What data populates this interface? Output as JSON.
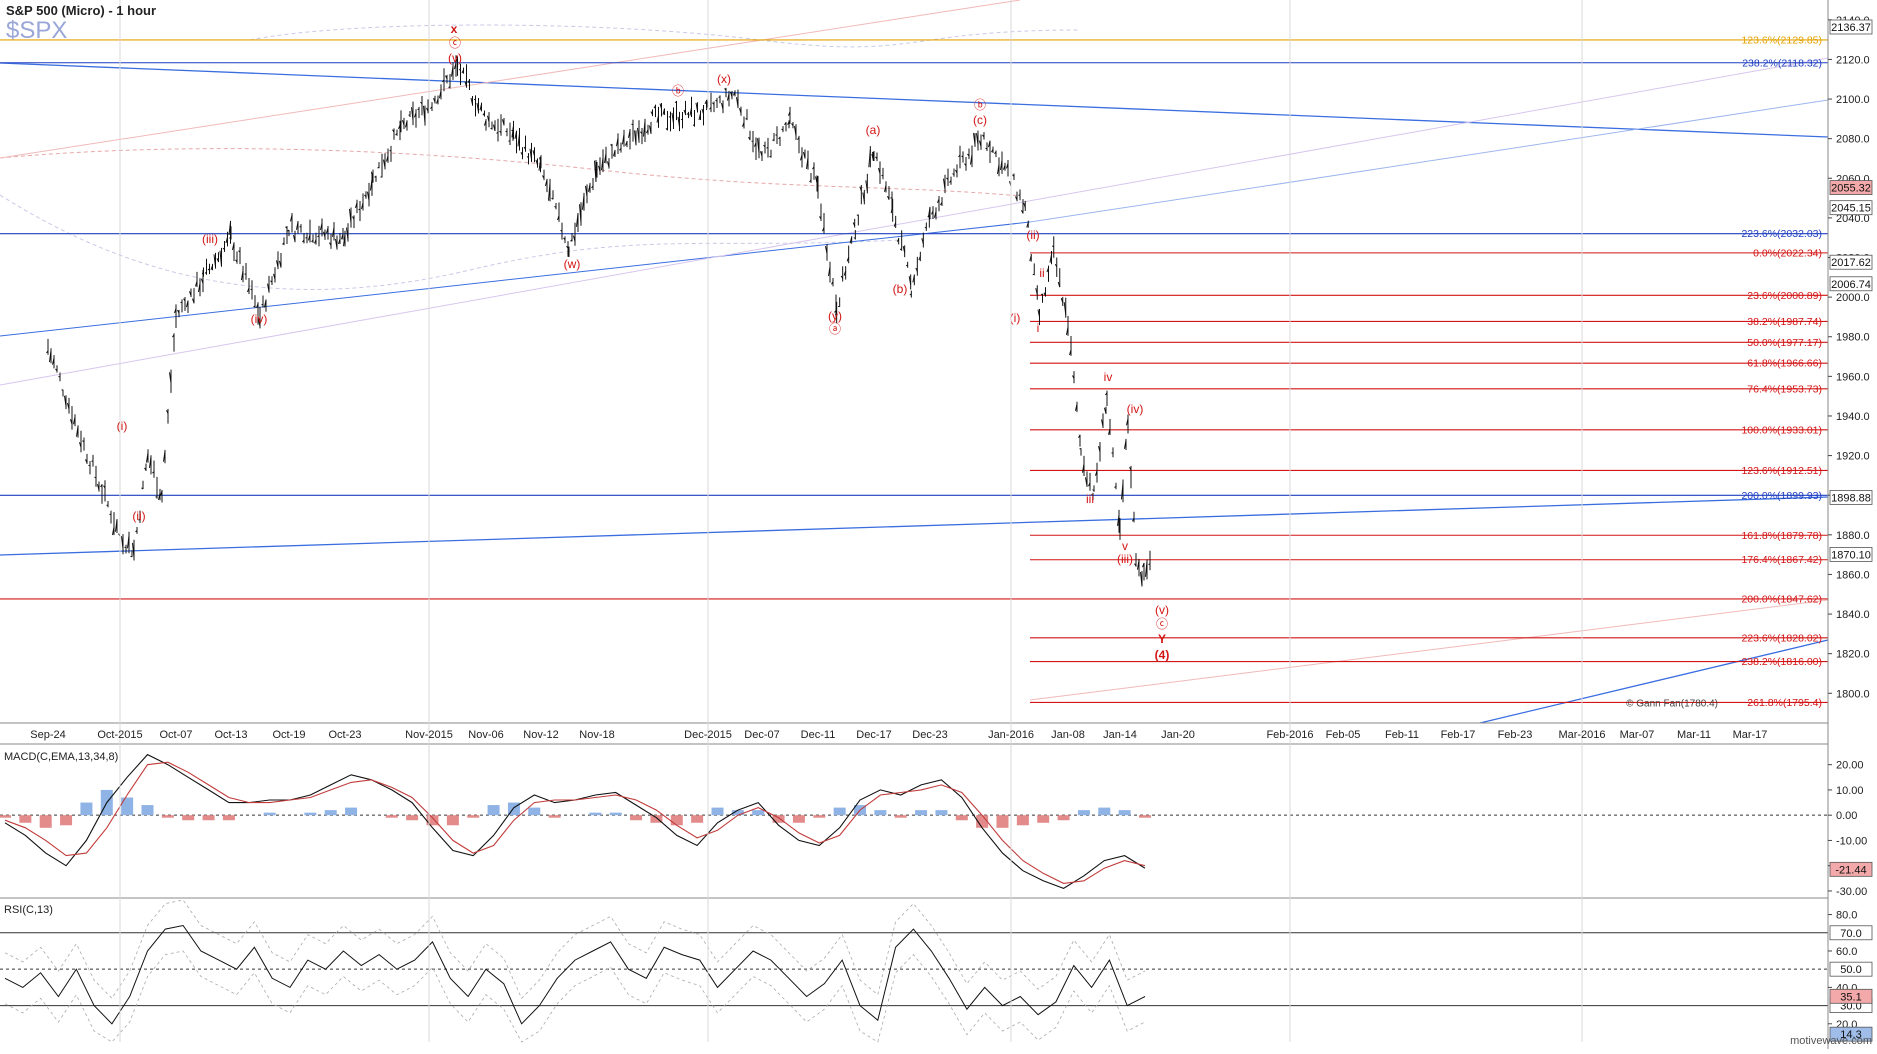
{
  "header": {
    "title": "S&P 500 (Micro) - 1 hour",
    "ticker": "$SPX"
  },
  "colors": {
    "accent_red": "#d31414",
    "fib_blue": "#1f3fc0",
    "fib_orange": "#e3a200",
    "trend_blue": "#3a6ee0",
    "bar": "#111111"
  },
  "chart_data": [
    {
      "type": "ohlc",
      "name": "price",
      "ylim": [
        1785,
        2150
      ],
      "grid": false,
      "y_ticks": [
        1800,
        1820,
        1840,
        1860,
        1880,
        1900,
        1920,
        1940,
        1960,
        1980,
        2000,
        2020,
        2040,
        2060,
        2080,
        2100,
        2120,
        2140
      ],
      "y_tick_labels": [
        "1800.0",
        "1820.0",
        "1840.0",
        "1860.0",
        "1880.0",
        "1900.0",
        "1920.0",
        "1940.0",
        "1960.0",
        "1980.0",
        "2000.0",
        "2020.0",
        "2040.0",
        "2060.0",
        "2080.0",
        "2100.0",
        "2120.0",
        "2140.0"
      ],
      "x_tick_labels": [
        "Sep-24",
        "Oct-2015",
        "Oct-07",
        "Oct-13",
        "Oct-19",
        "Oct-23",
        "Nov-2015",
        "Nov-06",
        "Nov-12",
        "Nov-18",
        "Dec-2015",
        "Dec-07",
        "Dec-11",
        "Dec-17",
        "Dec-23",
        "Jan-2016",
        "Jan-08",
        "Jan-14",
        "Jan-20",
        "Feb-2016",
        "Feb-05",
        "Feb-11",
        "Feb-17",
        "Feb-23",
        "Mar-2016",
        "Mar-07",
        "Mar-11",
        "Mar-17"
      ],
      "price_path": [
        [
          "Sep-24",
          1975
        ],
        [
          "Sep-24",
          1925
        ],
        [
          "Oct-2015",
          1880
        ],
        [
          "Oct-2015",
          1872
        ],
        [
          "Oct-2015",
          1920
        ],
        [
          "Oct-2015",
          1900
        ],
        [
          "Oct-07",
          1990
        ],
        [
          "Oct-07",
          2010
        ],
        [
          "Oct-13",
          2030
        ],
        [
          "Oct-13",
          1990
        ],
        [
          "Oct-19",
          2035
        ],
        [
          "Oct-23",
          2030
        ],
        [
          "Oct-23",
          2060
        ],
        [
          "Oct-23",
          2085
        ],
        [
          "Nov-2015",
          2097
        ],
        [
          "Nov-2015",
          2116
        ],
        [
          "Nov-06",
          2090
        ],
        [
          "Nov-06",
          2082
        ],
        [
          "Nov-12",
          2065
        ],
        [
          "Nov-12",
          2025
        ],
        [
          "Nov-18",
          2065
        ],
        [
          "Nov-18",
          2090
        ],
        [
          "Dec-2015",
          2094
        ],
        [
          "Dec-2015",
          2103
        ],
        [
          "Dec-07",
          2070
        ],
        [
          "Dec-07",
          2088
        ],
        [
          "Dec-11",
          2055
        ],
        [
          "Dec-11",
          1995
        ],
        [
          "Dec-11",
          2035
        ],
        [
          "Dec-17",
          2075
        ],
        [
          "Dec-17",
          2045
        ],
        [
          "Dec-17",
          2005
        ],
        [
          "Dec-23",
          2040
        ],
        [
          "Dec-23",
          2065
        ],
        [
          "Dec-23",
          2081
        ],
        [
          "Jan-2016",
          2060
        ],
        [
          "Jan-2016",
          2045
        ],
        [
          "Jan-2016",
          1990
        ],
        [
          "Jan-2016",
          2022
        ],
        [
          "Jan-08",
          1988
        ],
        [
          "Jan-08",
          1922
        ],
        [
          "Jan-08",
          1900
        ],
        [
          "Jan-08",
          1950
        ],
        [
          "Jan-14",
          1880
        ],
        [
          "Jan-14",
          1937
        ],
        [
          "Jan-14",
          1870
        ],
        [
          "Jan-14",
          1858
        ],
        [
          "Jan-14",
          1870
        ]
      ],
      "price_levels": [
        {
          "label": "2136.37"
        },
        {
          "label": "2055.32"
        },
        {
          "label": "2045.15"
        },
        {
          "label": "2017.62"
        },
        {
          "label": "2006.74"
        },
        {
          "label": "1898.88"
        },
        {
          "label": "1870.10"
        }
      ],
      "fib_levels": [
        {
          "text": "123.6%(2129.85)",
          "value": 2129.85,
          "color": "#e3a200"
        },
        {
          "text": "238.2%(2118.32)",
          "value": 2118.32,
          "color": "#1f3fc0"
        },
        {
          "text": "223.6%(2032.03)",
          "value": 2032.03,
          "color": "#1f3fc0"
        },
        {
          "text": "0.0%(2022.34)",
          "value": 2022.34,
          "color": "#d31414"
        },
        {
          "text": "23.6%(2000.89)",
          "value": 2000.89,
          "color": "#d31414"
        },
        {
          "text": "38.2%(1987.74)",
          "value": 1987.74,
          "color": "#d31414"
        },
        {
          "text": "50.0%(1977.17)",
          "value": 1977.17,
          "color": "#d31414"
        },
        {
          "text": "61.8%(1966.66)",
          "value": 1966.66,
          "color": "#d31414"
        },
        {
          "text": "76.4%(1953.73)",
          "value": 1953.73,
          "color": "#d31414"
        },
        {
          "text": "100.0%(1933.01)",
          "value": 1933.01,
          "color": "#d31414"
        },
        {
          "text": "123.6%(1912.51)",
          "value": 1912.51,
          "color": "#d31414"
        },
        {
          "text": "200.0%(1899.93)",
          "value": 1899.93,
          "color": "#1f3fc0"
        },
        {
          "text": "161.8%(1879.78)",
          "value": 1879.78,
          "color": "#d31414"
        },
        {
          "text": "176.4%(1867.42)",
          "value": 1867.42,
          "color": "#d31414"
        },
        {
          "text": "200.0%(1847.62)",
          "value": 1847.62,
          "color": "#d31414"
        },
        {
          "text": "223.6%(1828.02)",
          "value": 1828.02,
          "color": "#d31414"
        },
        {
          "text": "238.2%(1816.00)",
          "value": 1816.0,
          "color": "#d31414"
        },
        {
          "text": "261.8%(1795.4)",
          "value": 1795.4,
          "color": "#d31414"
        }
      ],
      "wave_labels": [
        "x",
        "ⓒ",
        "(v)",
        "ⓑ",
        "(i)",
        "(ii)",
        "(iii)",
        "(iv)",
        "(w)",
        "(x)",
        "(y)",
        "ⓐ",
        "(a)",
        "(b)",
        "ⓑ",
        "(c)",
        "(i)",
        "(ii)",
        "ii",
        "i",
        "iii",
        "iv",
        "v",
        "(iii)",
        "(iv)",
        "(v)",
        "ⓒ",
        "Y",
        "(4)"
      ],
      "annotations": [
        "© Gann Fan(1780.4)"
      ]
    },
    {
      "type": "line",
      "name": "MACD(C,EMA,13,34,8)",
      "ylim": [
        -32,
        27
      ],
      "y_ticks": [
        -30,
        -20,
        -10,
        0,
        10,
        20
      ],
      "y_tick_labels": [
        "-30.00",
        "-20.00",
        "-10.00",
        "0.00",
        "10.00",
        "20.00"
      ],
      "series": [
        {
          "name": "macd",
          "values": [
            -3,
            -8,
            -15,
            -20,
            -10,
            5,
            15,
            24,
            20,
            15,
            10,
            5,
            5,
            6,
            6,
            8,
            12,
            16,
            14,
            10,
            5,
            -5,
            -14,
            -16,
            -8,
            3,
            8,
            5,
            6,
            8,
            9,
            4,
            -1,
            -8,
            -12,
            -3,
            2,
            5,
            -4,
            -10,
            -12,
            -5,
            6,
            10,
            8,
            12,
            14,
            7,
            -5,
            -15,
            -22,
            -26,
            -29,
            -24,
            -18,
            -16,
            -21
          ]
        },
        {
          "name": "signal",
          "values": [
            -2,
            -5,
            -10,
            -16,
            -15,
            -5,
            8,
            20,
            21,
            17,
            12,
            7,
            5,
            5,
            6,
            7,
            10,
            13,
            14,
            11,
            7,
            -1,
            -10,
            -15,
            -12,
            -2,
            5,
            6,
            6,
            7,
            8,
            6,
            2,
            -4,
            -9,
            -6,
            0,
            3,
            -1,
            -7,
            -11,
            -8,
            2,
            8,
            9,
            10,
            12,
            9,
            0,
            -10,
            -18,
            -23,
            -27,
            -26,
            -21,
            -18,
            -20
          ]
        }
      ],
      "histogram": [
        -1,
        -3,
        -5,
        -4,
        5,
        10,
        7,
        4,
        -1,
        -2,
        -2,
        -2,
        0,
        1,
        0,
        1,
        2,
        3,
        0,
        -1,
        -2,
        -4,
        -4,
        -1,
        4,
        5,
        3,
        -1,
        0,
        1,
        1,
        -2,
        -3,
        -4,
        -3,
        3,
        2,
        2,
        -3,
        -3,
        -1,
        3,
        4,
        2,
        -1,
        2,
        2,
        -2,
        -5,
        -5,
        -4,
        -3,
        -2,
        2,
        3,
        2,
        -1
      ],
      "price_levels": [
        {
          "label": "-21.44"
        }
      ]
    },
    {
      "type": "line",
      "name": "RSI(C,13)",
      "ylim": [
        10,
        88
      ],
      "y_ticks": [
        20,
        40,
        60,
        80
      ],
      "y_tick_labels": [
        "20.0",
        "40.0",
        "60.0",
        "80.0"
      ],
      "levels": [
        30,
        50,
        70
      ],
      "level_labels": [
        "30.0",
        "50.0",
        "70.0"
      ],
      "series": [
        {
          "name": "rsi",
          "values": [
            45,
            40,
            48,
            35,
            50,
            30,
            20,
            35,
            60,
            72,
            74,
            60,
            55,
            50,
            62,
            45,
            40,
            55,
            50,
            60,
            52,
            58,
            50,
            55,
            65,
            45,
            35,
            50,
            42,
            20,
            30,
            45,
            55,
            60,
            65,
            50,
            45,
            62,
            58,
            55,
            40,
            50,
            60,
            55,
            45,
            35,
            42,
            55,
            30,
            22,
            62,
            72,
            60,
            45,
            28,
            40,
            30,
            35,
            25,
            32,
            52,
            40,
            55,
            30,
            35
          ]
        }
      ],
      "price_levels": [
        {
          "label": "35.1"
        },
        {
          "label": "14.3"
        }
      ]
    }
  ],
  "watermark": "motivewave.com"
}
